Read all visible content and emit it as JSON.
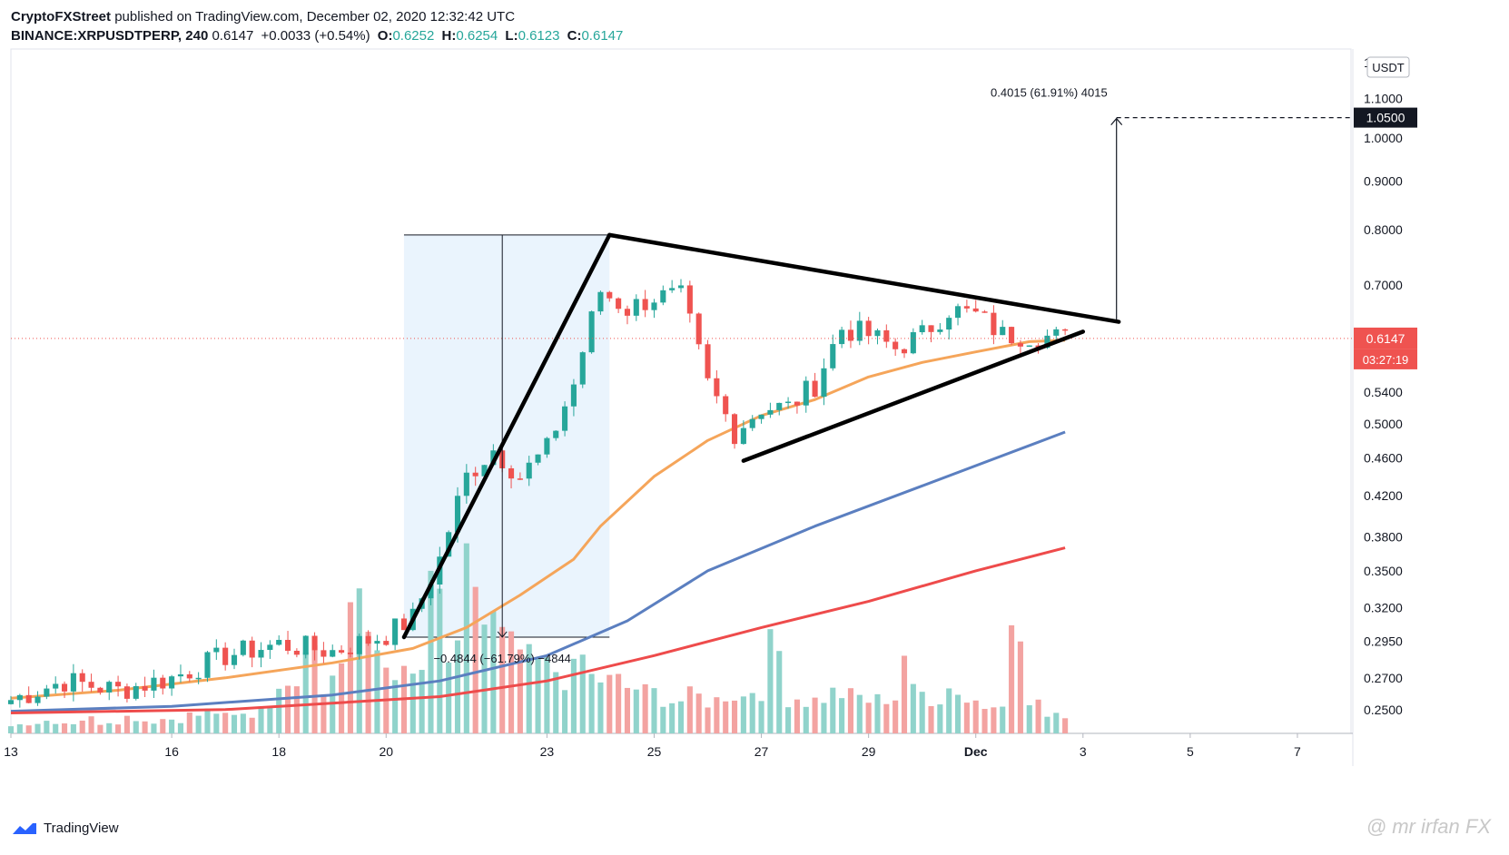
{
  "header": {
    "publisher": "CryptoFXStreet",
    "published_text": "published on TradingView.com, December 02, 2020 12:32:42 UTC",
    "symbol": "BINANCE:XRPUSDTPERP, 240",
    "last": "0.6147",
    "change": "+0.0033 (+0.54%)",
    "o_label": "O:",
    "o": "0.6252",
    "h_label": "H:",
    "h": "0.6254",
    "l_label": "L:",
    "l": "0.6123",
    "c_label": "C:",
    "c": "0.6147"
  },
  "footer": {
    "brand": "TradingView",
    "watermark": "@ mr irfan FX"
  },
  "colors": {
    "up": "#26a69a",
    "down": "#ef5350",
    "vol_up": "#90d3cb",
    "vol_down": "#f3a3a1",
    "ma_orange": "#f5a55a",
    "ma_blue": "#5b7fc0",
    "ma_red": "#ee4b4b"
  },
  "chart_data": {
    "type": "candlestick",
    "y_scale": "log",
    "ylim": [
      0.236,
      1.24
    ],
    "xlim": [
      "2020-11-13",
      "2020-12-08"
    ],
    "currency_label": "USDT",
    "price_ticks": [
      "1.2000",
      "1.1000",
      "1.0000",
      "0.9000",
      "0.8000",
      "0.7000",
      "0.5400",
      "0.5000",
      "0.4600",
      "0.4200",
      "0.3800",
      "0.3500",
      "0.3200",
      "0.2950",
      "0.2700",
      "0.2500"
    ],
    "price_tick_values": [
      1.2,
      1.1,
      1.0,
      0.9,
      0.8,
      0.7,
      0.54,
      0.5,
      0.46,
      0.42,
      0.38,
      0.35,
      0.32,
      0.295,
      0.27,
      0.25
    ],
    "x_ticks": [
      "13",
      "16",
      "18",
      "20",
      "23",
      "25",
      "27",
      "29",
      "Dec",
      "3",
      "5",
      "7"
    ],
    "x_tick_values": [
      "2020-11-13",
      "2020-11-16",
      "2020-11-18",
      "2020-11-20",
      "2020-11-23",
      "2020-11-25",
      "2020-11-27",
      "2020-11-29",
      "2020-12-01",
      "2020-12-03",
      "2020-12-05",
      "2020-12-07"
    ],
    "current_price": {
      "value": 0.6147,
      "label": "0.6147",
      "countdown": "03:27:19"
    },
    "target_price": {
      "value": 1.05,
      "label": "1.0500"
    },
    "measure_up": {
      "label": "0.4015 (61.91%) 4015",
      "from_date": "2020-12-03 15:00",
      "from_price": 0.64,
      "to_price": 1.05
    },
    "measure_down": {
      "label": "−0.4844 (−61.79%) −4844",
      "x_date": "2020-11-22 04:00",
      "top_price": 0.79,
      "bottom_price": 0.298
    },
    "flagpole": {
      "from": [
        "2020-11-20 08:00",
        0.298
      ],
      "to": [
        "2020-11-24 04:00",
        0.79
      ]
    },
    "pennant_upper": {
      "from": [
        "2020-11-24 04:00",
        0.79
      ],
      "to": [
        "2020-12-03 16:00",
        0.64
      ]
    },
    "pennant_lower": {
      "from": [
        "2020-11-26 16:00",
        0.457
      ],
      "to": [
        "2020-12-03 00:00",
        0.625
      ]
    },
    "candle_hours": 4,
    "series": [
      {
        "name": "",
        "color": "#f5a55a",
        "dates": [
          "2020-11-13",
          "2020-11-15",
          "2020-11-17",
          "2020-11-19",
          "2020-11-20 12:00",
          "2020-11-21 12:00",
          "2020-11-22 12:00",
          "2020-11-23 12:00",
          "2020-11-24",
          "2020-11-25",
          "2020-11-26",
          "2020-11-27",
          "2020-11-28",
          "2020-11-29",
          "2020-11-30",
          "2020-12-01",
          "2020-12-02",
          "2020-12-02 16:00"
        ],
        "values": [
          0.257,
          0.262,
          0.27,
          0.28,
          0.29,
          0.305,
          0.33,
          0.36,
          0.39,
          0.44,
          0.48,
          0.51,
          0.53,
          0.56,
          0.58,
          0.595,
          0.61,
          0.612
        ]
      },
      {
        "name": "",
        "color": "#5b7fc0",
        "dates": [
          "2020-11-13",
          "2020-11-16",
          "2020-11-19",
          "2020-11-21",
          "2020-11-23",
          "2020-11-24 12:00",
          "2020-11-26",
          "2020-11-28",
          "2020-11-30",
          "2020-12-02 16:00"
        ],
        "values": [
          0.249,
          0.252,
          0.259,
          0.268,
          0.285,
          0.31,
          0.35,
          0.39,
          0.43,
          0.49
        ]
      },
      {
        "name": "",
        "color": "#ee4b4b",
        "dates": [
          "2020-11-13",
          "2020-11-17",
          "2020-11-21",
          "2020-11-23",
          "2020-11-25",
          "2020-11-27",
          "2020-11-29",
          "2020-12-01",
          "2020-12-02 16:00"
        ],
        "values": [
          0.248,
          0.25,
          0.258,
          0.268,
          0.285,
          0.305,
          0.325,
          0.35,
          0.37
        ]
      }
    ],
    "candles_daily_closes": [
      [
        "2020-11-13",
        0.256
      ],
      [
        "2020-11-14",
        0.268
      ],
      [
        "2020-11-15",
        0.262
      ],
      [
        "2020-11-16",
        0.27
      ],
      [
        "2020-11-17",
        0.285
      ],
      [
        "2020-11-18",
        0.293
      ],
      [
        "2020-11-19",
        0.288
      ],
      [
        "2020-11-20",
        0.3
      ],
      [
        "2020-11-20 12:00",
        0.312
      ],
      [
        "2020-11-21",
        0.36
      ],
      [
        "2020-11-21 12:00",
        0.44
      ],
      [
        "2020-11-22",
        0.47
      ],
      [
        "2020-11-22 12:00",
        0.44
      ],
      [
        "2020-11-23",
        0.47
      ],
      [
        "2020-11-23 12:00",
        0.55
      ],
      [
        "2020-11-24",
        0.69
      ],
      [
        "2020-11-24 12:00",
        0.66
      ],
      [
        "2020-11-25",
        0.68
      ],
      [
        "2020-11-25 12:00",
        0.68
      ],
      [
        "2020-11-26",
        0.55
      ],
      [
        "2020-11-26 12:00",
        0.49
      ],
      [
        "2020-11-27",
        0.52
      ],
      [
        "2020-11-27 12:00",
        0.52
      ],
      [
        "2020-11-28",
        0.55
      ],
      [
        "2020-11-28 12:00",
        0.63
      ],
      [
        "2020-11-29",
        0.62
      ],
      [
        "2020-11-29 12:00",
        0.6
      ],
      [
        "2020-11-30",
        0.62
      ],
      [
        "2020-11-30 12:00",
        0.66
      ],
      [
        "2020-12-01",
        0.65
      ],
      [
        "2020-12-01 12:00",
        0.62
      ],
      [
        "2020-12-02",
        0.62
      ],
      [
        "2020-12-02 16:00",
        0.615
      ]
    ],
    "volume_profile": [
      0.05,
      0.06,
      0.07,
      0.06,
      0.08,
      0.06,
      0.07,
      0.09,
      0.07,
      0.08,
      0.08,
      0.1,
      0.12,
      0.09,
      0.1,
      0.15,
      0.2,
      0.35,
      0.55,
      0.3,
      0.4,
      0.78,
      0.45,
      0.38,
      0.3,
      0.35,
      0.72,
      0.4,
      0.85,
      0.6,
      0.5,
      0.45,
      0.38,
      0.35,
      0.32,
      0.42,
      0.3,
      0.28,
      0.25,
      0.22,
      0.2,
      0.18,
      0.2,
      0.18,
      0.22,
      0.2,
      0.25,
      0.45,
      0.2,
      0.18,
      0.2,
      0.22,
      0.2,
      0.18,
      0.2,
      0.45,
      0.22,
      0.2,
      0.25,
      0.18,
      0.15,
      0.2,
      0.52,
      0.15,
      0.12,
      0.1
    ]
  }
}
